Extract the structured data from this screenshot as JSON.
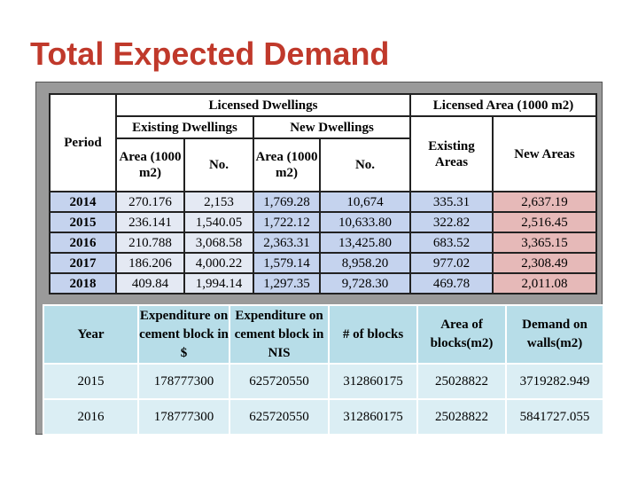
{
  "title": "Total Expected Demand",
  "table1": {
    "header": {
      "period": "Period",
      "licensed_dwellings": "Licensed Dwellings",
      "licensed_area": "Licensed Area (1000 m2)",
      "existing_dwellings": "Existing Dwellings",
      "new_dwellings": "New Dwellings",
      "existing_areas": "Existing Areas",
      "new_areas": "New Areas",
      "columns": [
        "Area (1000 m2)",
        "No.",
        "Area (1000 m2)",
        "No."
      ]
    },
    "rows": [
      [
        "2014",
        "270.176",
        "2,153",
        "1,769.28",
        "10,674",
        "335.31",
        "2,637.19"
      ],
      [
        "2015",
        "236.141",
        "1,540.05",
        "1,722.12",
        "10,633.80",
        "322.82",
        "2,516.45"
      ],
      [
        "2016",
        "210.788",
        "3,068.58",
        "2,363.31",
        "13,425.80",
        "683.52",
        "3,365.15"
      ],
      [
        "2017",
        "186.206",
        "4,000.22",
        "1,579.14",
        "8,958.20",
        "977.02",
        "2,308.49"
      ],
      [
        "2018",
        "409.84",
        "1,994.14",
        "1,297.35",
        "9,728.30",
        "469.78",
        "2,011.08"
      ]
    ]
  },
  "table2": {
    "columns": [
      "Year",
      "Expenditure on cement block in $",
      "Expenditure on cement block in NIS",
      "# of blocks",
      "Area of blocks(m2)",
      "Demand on walls(m2)"
    ],
    "rows": [
      [
        "2015",
        "178777300",
        "625720550",
        "312860175",
        "25028822",
        "3719282.949"
      ],
      [
        "2016",
        "178777300",
        "625720550",
        "312860175",
        "25028822",
        "5841727.055"
      ]
    ]
  }
}
